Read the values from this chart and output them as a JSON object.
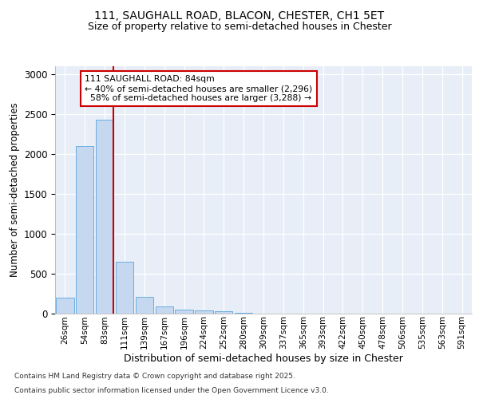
{
  "title1": "111, SAUGHALL ROAD, BLACON, CHESTER, CH1 5ET",
  "title2": "Size of property relative to semi-detached houses in Chester",
  "xlabel": "Distribution of semi-detached houses by size in Chester",
  "ylabel": "Number of semi-detached properties",
  "categories": [
    "26sqm",
    "54sqm",
    "83sqm",
    "111sqm",
    "139sqm",
    "167sqm",
    "196sqm",
    "224sqm",
    "252sqm",
    "280sqm",
    "309sqm",
    "337sqm",
    "365sqm",
    "393sqm",
    "422sqm",
    "450sqm",
    "478sqm",
    "506sqm",
    "535sqm",
    "563sqm",
    "591sqm"
  ],
  "values": [
    195,
    2100,
    2430,
    650,
    205,
    90,
    45,
    35,
    25,
    8,
    0,
    0,
    0,
    0,
    0,
    0,
    0,
    0,
    0,
    0,
    0
  ],
  "bar_color": "#c5d8f0",
  "bar_edge_color": "#6aaee0",
  "property_size": "84sqm",
  "pct_smaller": 40,
  "num_smaller": 2296,
  "pct_larger": 58,
  "num_larger": 3288,
  "vline_color": "#cc0000",
  "annotation_box_color": "#cc0000",
  "ylim": [
    0,
    3100
  ],
  "yticks": [
    0,
    500,
    1000,
    1500,
    2000,
    2500,
    3000
  ],
  "background_color": "#e8eef8",
  "footer_line1": "Contains HM Land Registry data © Crown copyright and database right 2025.",
  "footer_line2": "Contains public sector information licensed under the Open Government Licence v3.0.",
  "title_fontsize": 10,
  "subtitle_fontsize": 9
}
